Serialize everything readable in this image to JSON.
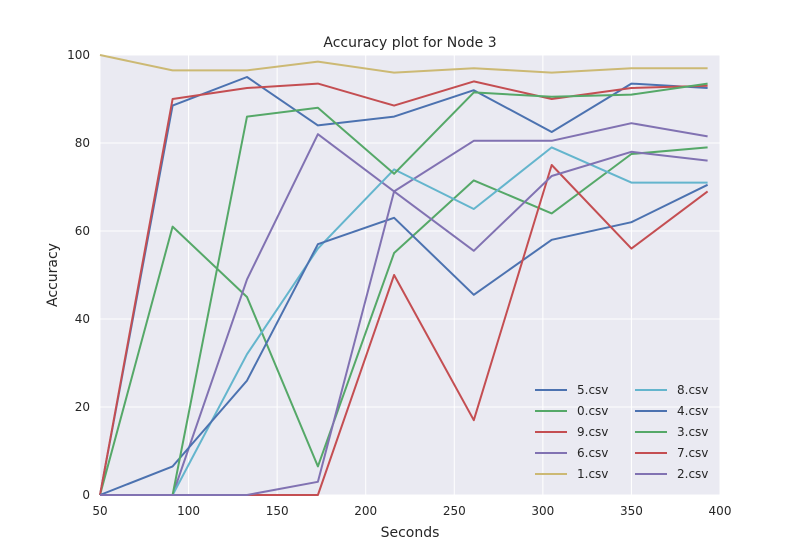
{
  "chart_data": {
    "type": "line",
    "title": "Accuracy plot for Node 3",
    "xlabel": "Seconds",
    "ylabel": "Accuracy",
    "xlim": [
      50,
      400
    ],
    "ylim": [
      0,
      100
    ],
    "xticks": [
      50,
      100,
      150,
      200,
      250,
      300,
      350,
      400
    ],
    "yticks": [
      0,
      20,
      40,
      60,
      80,
      100
    ],
    "grid": true,
    "legend_position": "bottom-right",
    "legend_columns": 2,
    "x": [
      50,
      91,
      133,
      173,
      216,
      261,
      305,
      350,
      393
    ],
    "series": [
      {
        "name": "5.csv",
        "color": "#4c72b0",
        "values": [
          0,
          88.5,
          95,
          84,
          86,
          92,
          82.5,
          93.5,
          92.5
        ]
      },
      {
        "name": "0.csv",
        "color": "#55a868",
        "values": [
          0,
          61,
          45,
          6.5,
          55,
          71.5,
          64,
          77.5,
          79
        ]
      },
      {
        "name": "9.csv",
        "color": "#c44e52",
        "values": [
          0,
          90,
          92.5,
          93.5,
          88.5,
          94,
          90,
          92.5,
          93
        ]
      },
      {
        "name": "6.csv",
        "color": "#8172b2",
        "values": [
          0,
          0,
          49,
          82,
          69,
          80.5,
          80.5,
          84.5,
          81.5
        ]
      },
      {
        "name": "1.csv",
        "color": "#ccb974",
        "values": [
          100,
          96.5,
          96.5,
          98.5,
          96,
          97,
          96,
          97,
          97
        ]
      },
      {
        "name": "8.csv",
        "color": "#64b5cd",
        "values": [
          0,
          0,
          32,
          56,
          74,
          65,
          79,
          71,
          71
        ]
      },
      {
        "name": "4.csv",
        "color": "#4c72b0",
        "values": [
          0,
          6.5,
          26,
          57,
          63,
          45.5,
          58,
          62,
          70.5
        ]
      },
      {
        "name": "3.csv",
        "color": "#55a868",
        "values": [
          0,
          0,
          86,
          88,
          73,
          91.5,
          90.5,
          91,
          93.5
        ]
      },
      {
        "name": "7.csv",
        "color": "#c44e52",
        "values": [
          0,
          0,
          0,
          0,
          50,
          17,
          75,
          56,
          69
        ]
      },
      {
        "name": "2.csv",
        "color": "#8172b2",
        "values": [
          0,
          0,
          0,
          3,
          69,
          55.5,
          72.5,
          78,
          76
        ]
      }
    ]
  }
}
